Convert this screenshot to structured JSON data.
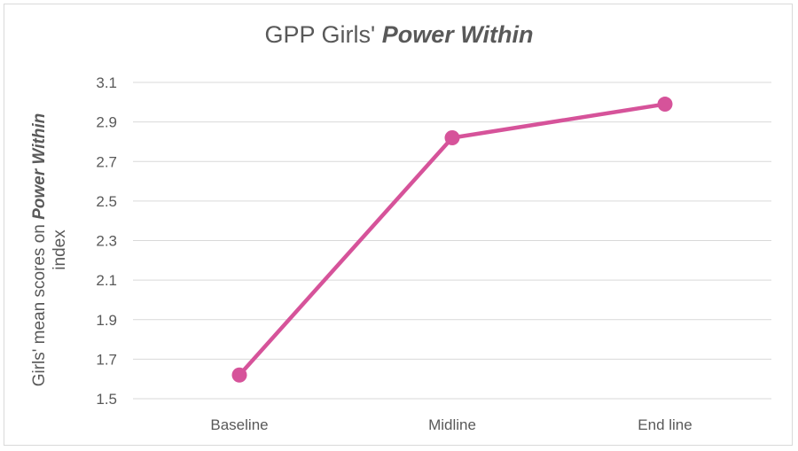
{
  "chart_data": {
    "type": "line",
    "title_prefix": "GPP Girls' ",
    "title_emphasis": "Power Within",
    "ylabel_prefix": "Girls' mean scores on ",
    "ylabel_emphasis": "Power Within",
    "ylabel_suffix": "index",
    "xlabel": "",
    "categories": [
      "Baseline",
      "Midline",
      "End line"
    ],
    "series": [
      {
        "values": [
          1.62,
          2.82,
          2.99
        ],
        "color": "#d6539a"
      }
    ],
    "ylim": [
      1.5,
      3.1
    ],
    "yticks": [
      "1.5",
      "1.7",
      "1.9",
      "2.1",
      "2.3",
      "2.5",
      "2.7",
      "2.9",
      "3.1"
    ],
    "grid": true,
    "legend": "none"
  }
}
